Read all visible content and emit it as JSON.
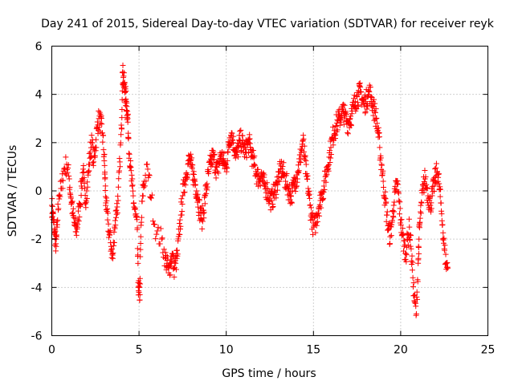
{
  "chart_data": {
    "type": "scatter",
    "title": "Day 241 of 2015, Sidereal Day-to-day VTEC variation (SDTVAR) for receiver reyk",
    "xlabel": "GPS time / hours",
    "ylabel": "SDTVAR / TECUs",
    "xlim": [
      0,
      25
    ],
    "ylim": [
      -6,
      6
    ],
    "xticks": [
      "0",
      "5",
      "10",
      "15",
      "20",
      "25"
    ],
    "yticks": [
      "-6",
      "-4",
      "-2",
      "0",
      "2",
      "4",
      "6"
    ],
    "marker": "+",
    "color": "#ff0000",
    "grid": true,
    "series": [
      {
        "name": "SDTVAR",
        "x": [
          0.0,
          0.05,
          0.1,
          0.15,
          0.2,
          0.25,
          0.3,
          0.4,
          0.55,
          0.7,
          0.85,
          1.0,
          1.1,
          1.2,
          1.3,
          1.4,
          1.5,
          1.6,
          1.7,
          1.8,
          1.9,
          2.0,
          2.1,
          2.2,
          2.3,
          2.4,
          2.5,
          2.6,
          2.7,
          2.8,
          2.9,
          3.0,
          3.05,
          3.1,
          3.2,
          3.3,
          3.4,
          3.5,
          3.6,
          3.7,
          3.8,
          3.9,
          4.0,
          4.05,
          4.1,
          4.15,
          4.2,
          4.25,
          4.3,
          4.35,
          4.4,
          4.5,
          4.6,
          4.7,
          4.8,
          4.9,
          4.95,
          5.0,
          5.05,
          5.1,
          5.2,
          5.3,
          5.5,
          5.7,
          6.0,
          6.3,
          6.5,
          6.6,
          6.7,
          6.8,
          6.9,
          7.0,
          7.1,
          7.2,
          7.3,
          7.4,
          7.5,
          7.6,
          7.7,
          7.8,
          7.9,
          8.0,
          8.1,
          8.2,
          8.3,
          8.4,
          8.5,
          8.6,
          8.7,
          8.8,
          8.9,
          9.0,
          9.1,
          9.2,
          9.3,
          9.4,
          9.5,
          9.6,
          9.7,
          9.8,
          9.9,
          10.0,
          10.1,
          10.2,
          10.3,
          10.4,
          10.5,
          10.6,
          10.7,
          10.8,
          10.9,
          11.0,
          11.1,
          11.2,
          11.3,
          11.4,
          11.5,
          11.6,
          11.7,
          11.8,
          11.9,
          12.0,
          12.1,
          12.2,
          12.3,
          12.4,
          12.5,
          12.6,
          12.7,
          12.8,
          12.9,
          13.0,
          13.1,
          13.2,
          13.3,
          13.4,
          13.5,
          13.6,
          13.7,
          13.8,
          13.9,
          14.0,
          14.1,
          14.2,
          14.3,
          14.4,
          14.5,
          14.6,
          14.7,
          14.8,
          14.9,
          15.0,
          15.1,
          15.2,
          15.3,
          15.4,
          15.5,
          15.6,
          15.7,
          15.8,
          15.9,
          16.0,
          16.1,
          16.2,
          16.3,
          16.4,
          16.5,
          16.6,
          16.7,
          16.8,
          16.9,
          17.0,
          17.1,
          17.2,
          17.3,
          17.4,
          17.5,
          17.6,
          17.7,
          17.8,
          17.9,
          18.0,
          18.1,
          18.2,
          18.3,
          18.4,
          18.5,
          18.6,
          18.7,
          18.8,
          18.9,
          19.0,
          19.1,
          19.2,
          19.3,
          19.4,
          19.5,
          19.6,
          19.7,
          19.8,
          19.9,
          20.0,
          20.1,
          20.2,
          20.3,
          20.4,
          20.5,
          20.6,
          20.7,
          20.8,
          20.9,
          21.0,
          21.05,
          21.1,
          21.2,
          21.3,
          21.4,
          21.5,
          21.6,
          21.7,
          21.8,
          21.9,
          22.0,
          22.1,
          22.2,
          22.3,
          22.4,
          22.5,
          22.6,
          22.7
        ],
        "y": [
          -0.6,
          -0.9,
          -1.3,
          -1.7,
          -2.0,
          -2.3,
          -1.5,
          -0.2,
          0.1,
          0.9,
          1.1,
          0.5,
          -0.3,
          -0.9,
          -1.4,
          -1.7,
          -1.2,
          -0.6,
          0.2,
          0.9,
          -0.5,
          0.0,
          0.8,
          1.6,
          2.0,
          1.2,
          1.8,
          2.6,
          3.0,
          2.8,
          2.4,
          1.5,
          0.5,
          -0.5,
          -1.2,
          -1.8,
          -2.3,
          -2.8,
          -1.5,
          -0.8,
          -0.4,
          1.2,
          2.6,
          4.9,
          4.7,
          4.4,
          4.1,
          3.8,
          3.5,
          3.0,
          2.2,
          1.0,
          0.2,
          -0.5,
          -1.0,
          -1.6,
          -3.8,
          -4.2,
          -4.3,
          -1.9,
          -0.2,
          0.4,
          0.9,
          -0.3,
          -1.8,
          -2.0,
          -2.8,
          -3.0,
          -3.4,
          -3.0,
          -2.6,
          -3.2,
          -3.0,
          -2.7,
          -1.8,
          -1.0,
          -0.2,
          0.3,
          0.7,
          1.1,
          1.3,
          1.0,
          0.7,
          0.4,
          0.0,
          -0.4,
          -0.9,
          -1.2,
          -0.8,
          -0.2,
          0.3,
          0.8,
          1.1,
          1.4,
          1.3,
          1.0,
          0.8,
          1.2,
          1.5,
          1.3,
          1.1,
          1.0,
          1.6,
          2.2,
          2.4,
          2.0,
          1.7,
          1.5,
          1.8,
          2.1,
          2.0,
          1.8,
          1.6,
          1.9,
          2.0,
          1.7,
          1.4,
          1.1,
          0.8,
          0.6,
          0.5,
          0.7,
          0.4,
          0.2,
          0.1,
          -0.1,
          -0.3,
          -0.4,
          -0.2,
          0.0,
          0.3,
          0.6,
          0.8,
          0.9,
          0.7,
          0.4,
          0.2,
          0.0,
          -0.2,
          0.0,
          0.3,
          0.5,
          0.8,
          1.2,
          1.6,
          2.1,
          1.3,
          0.6,
          0.1,
          -0.6,
          -1.1,
          -1.5,
          -1.4,
          -1.0,
          -0.7,
          -0.4,
          -0.1,
          0.2,
          0.6,
          1.0,
          1.4,
          1.8,
          2.2,
          2.5,
          2.7,
          2.9,
          3.0,
          3.2,
          3.3,
          3.1,
          2.9,
          2.8,
          3.0,
          3.2,
          3.5,
          3.7,
          3.9,
          4.0,
          4.1,
          3.8,
          3.6,
          3.7,
          3.9,
          4.1,
          3.9,
          3.6,
          3.3,
          3.0,
          2.4,
          1.8,
          1.1,
          0.4,
          -0.3,
          -1.0,
          -1.6,
          -1.9,
          -1.3,
          -0.6,
          0.0,
          0.3,
          -0.4,
          -1.2,
          -1.8,
          -2.3,
          -2.6,
          -2.0,
          -1.5,
          -2.4,
          -3.6,
          -4.6,
          -5.1,
          -3.0,
          -2.0,
          -1.3,
          -0.5,
          0.2,
          0.5,
          0.1,
          -0.3,
          -0.6,
          -0.2,
          0.2,
          0.6,
          0.8,
          0.3,
          -0.5,
          -1.4,
          -2.4,
          -3.0,
          -3.2
        ]
      }
    ]
  }
}
